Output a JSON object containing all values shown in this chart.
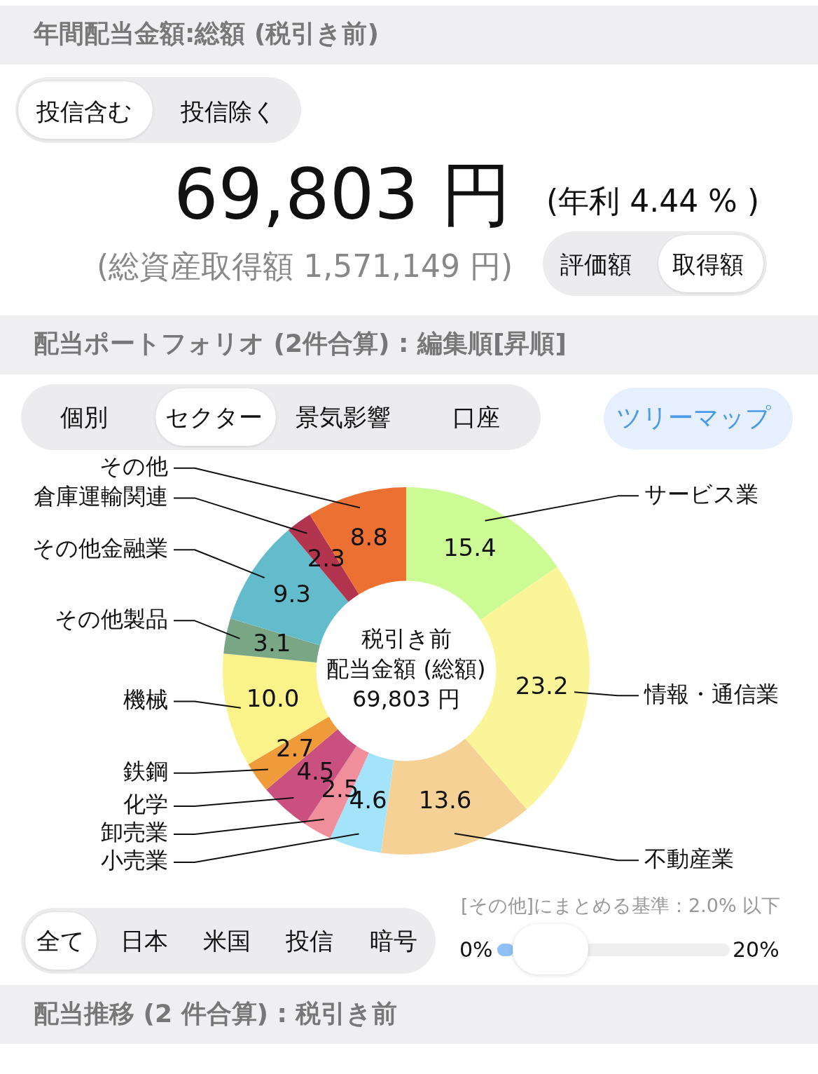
{
  "chart_data": {
    "type": "donut",
    "title": "配当ポートフォリオ (2件合算) : 編集順[昇順]",
    "categories": [
      "サービス業",
      "情報・通信業",
      "不動産業",
      "小売業",
      "卸売業",
      "化学",
      "鉄鋼",
      "機械",
      "その他製品",
      "その他金融業",
      "倉庫運輸関連",
      "その他"
    ],
    "values": [
      15.4,
      23.2,
      13.6,
      4.6,
      2.5,
      4.5,
      2.7,
      10.0,
      3.1,
      9.3,
      2.3,
      8.8
    ],
    "value_labels": [
      "15.4",
      "23.2",
      "13.6",
      "4.6",
      "2.5",
      "4.5",
      "2.7",
      "10.0",
      "3.1",
      "9.3",
      "2.3",
      "8.8"
    ],
    "colors": [
      "#ccfa94",
      "#fbf59a",
      "#f6d196",
      "#a3e4fb",
      "#f08f9b",
      "#c9507f",
      "#ef9b3a",
      "#fbf38a",
      "#79a785",
      "#62bccc",
      "#b3344f",
      "#eb7031"
    ],
    "legend": false,
    "annotations": [
      "年間配当金額:総額 (税引き前)",
      "投信含む",
      "投信除く",
      "69,803 円",
      "(年利 4.44 % )",
      "(総資産取得額 1,571,149 円)",
      "評価額",
      "取得額",
      "個別",
      "セクター",
      "景気影響",
      "口座",
      "ツリーマップ",
      "税引き前",
      "配当金額 (総額)",
      "69,803 円",
      "全て",
      "日本",
      "米国",
      "投信",
      "暗号",
      "[その他]にまとめる基準：2.0% 以下",
      "0%",
      "20%",
      "配当推移 (2 件合算) : 税引き前"
    ]
  }
}
